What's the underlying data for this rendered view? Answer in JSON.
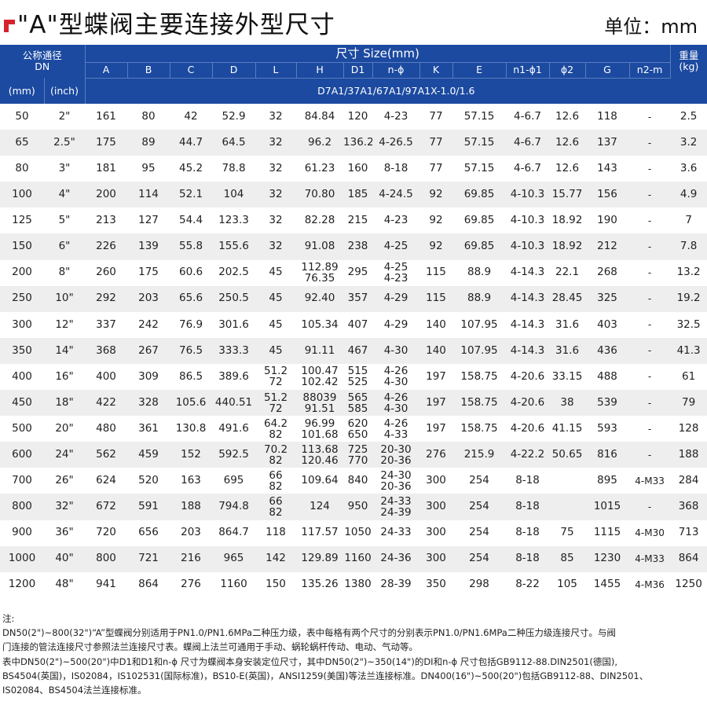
{
  "header": {
    "title": "\"A\"型蝶阀主要连接外型尺寸",
    "unit": "单位：mm"
  },
  "table": {
    "headers": {
      "nominal": "公称通径",
      "dn": "DN",
      "size": "尺寸 Size(mm)",
      "weight_cn": "重量",
      "weight_unit": "(kg)",
      "mm": "(mm)",
      "inch": "(inch)",
      "model": "D7A1/37A1/67A1/97A1X-1.0/1.6",
      "cols": [
        "A",
        "B",
        "C",
        "D",
        "L",
        "H",
        "D1",
        "n-ϕ",
        "K",
        "E",
        "n1-ϕ1",
        "ϕ2",
        "G",
        "n2-m"
      ]
    },
    "rows": [
      [
        "50",
        "2\"",
        "161",
        "80",
        "42",
        "52.9",
        "32",
        "84.84",
        "120",
        "4-23",
        "77",
        "57.15",
        "4-6.7",
        "12.6",
        "118",
        "-",
        "2.5"
      ],
      [
        "65",
        "2.5\"",
        "175",
        "89",
        "44.7",
        "64.5",
        "32",
        "96.2",
        "136.2",
        "4-26.5",
        "77",
        "57.15",
        "4-6.7",
        "12.6",
        "137",
        "-",
        "3.2"
      ],
      [
        "80",
        "3\"",
        "181",
        "95",
        "45.2",
        "78.8",
        "32",
        "61.23",
        "160",
        "8-18",
        "77",
        "57.15",
        "4-6.7",
        "12.6",
        "143",
        "-",
        "3.6"
      ],
      [
        "100",
        "4\"",
        "200",
        "114",
        "52.1",
        "104",
        "32",
        "70.80",
        "185",
        "4-24.5",
        "92",
        "69.85",
        "4-10.3",
        "15.77",
        "156",
        "-",
        "4.9"
      ],
      [
        "125",
        "5\"",
        "213",
        "127",
        "54.4",
        "123.3",
        "32",
        "82.28",
        "215",
        "4-23",
        "92",
        "69.85",
        "4-10.3",
        "18.92",
        "190",
        "-",
        "7"
      ],
      [
        "150",
        "6\"",
        "226",
        "139",
        "55.8",
        "155.6",
        "32",
        "91.08",
        "238",
        "4-25",
        "92",
        "69.85",
        "4-10.3",
        "18.92",
        "212",
        "-",
        "7.8"
      ],
      [
        "200",
        "8\"",
        "260",
        "175",
        "60.6",
        "202.5",
        "45",
        "112.89\n76.35",
        "295",
        "4-25\n4-23",
        "115",
        "88.9",
        "4-14.3",
        "22.1",
        "268",
        "-",
        "13.2"
      ],
      [
        "250",
        "10\"",
        "292",
        "203",
        "65.6",
        "250.5",
        "45",
        "92.40",
        "357",
        "4-29",
        "115",
        "88.9",
        "4-14.3",
        "28.45",
        "325",
        "-",
        "19.2"
      ],
      [
        "300",
        "12\"",
        "337",
        "242",
        "76.9",
        "301.6",
        "45",
        "105.34",
        "407",
        "4-29",
        "140",
        "107.95",
        "4-14.3",
        "31.6",
        "403",
        "-",
        "32.5"
      ],
      [
        "350",
        "14\"",
        "368",
        "267",
        "76.5",
        "333.3",
        "45",
        "91.11",
        "467",
        "4-30",
        "140",
        "107.95",
        "4-14.3",
        "31.6",
        "436",
        "-",
        "41.3"
      ],
      [
        "400",
        "16\"",
        "400",
        "309",
        "86.5",
        "389.6",
        "51.2\n72",
        "100.47\n102.42",
        "515\n525",
        "4-26\n4-30",
        "197",
        "158.75",
        "4-20.6",
        "33.15",
        "488",
        "-",
        "61"
      ],
      [
        "450",
        "18\"",
        "422",
        "328",
        "105.6",
        "440.51",
        "51.2\n72",
        "88039\n91.51",
        "565\n585",
        "4-26\n4-30",
        "197",
        "158.75",
        "4-20.6",
        "38",
        "539",
        "-",
        "79"
      ],
      [
        "500",
        "20\"",
        "480",
        "361",
        "130.8",
        "491.6",
        "64.2\n82",
        "96.99\n101.68",
        "620\n650",
        "4-26\n4-33",
        "197",
        "158.75",
        "4-20.6",
        "41.15",
        "593",
        "-",
        "128"
      ],
      [
        "600",
        "24\"",
        "562",
        "459",
        "152",
        "592.5",
        "70.2\n82",
        "113.68\n120.46",
        "725\n770",
        "20-30\n20-36",
        "276",
        "215.9",
        "4-22.2",
        "50.65",
        "816",
        "-",
        "188"
      ],
      [
        "700",
        "26\"",
        "624",
        "520",
        "163",
        "695",
        "66\n82",
        "109.64",
        "840",
        "24-30\n20-36",
        "300",
        "254",
        "8-18",
        "",
        "895",
        "4-M33",
        "284"
      ],
      [
        "800",
        "32\"",
        "672",
        "591",
        "188",
        "794.8",
        "66\n82",
        "124",
        "950",
        "24-33\n24-39",
        "300",
        "254",
        "8-18",
        "",
        "1015",
        "-",
        "368"
      ],
      [
        "900",
        "36\"",
        "720",
        "656",
        "203",
        "864.7",
        "118",
        "117.57",
        "1050",
        "24-33",
        "300",
        "254",
        "8-18",
        "75",
        "1115",
        "4-M30",
        "713"
      ],
      [
        "1000",
        "40\"",
        "800",
        "721",
        "216",
        "965",
        "142",
        "129.89",
        "1160",
        "24-36",
        "300",
        "254",
        "8-18",
        "85",
        "1230",
        "4-M33",
        "864"
      ],
      [
        "1200",
        "48\"",
        "941",
        "864",
        "276",
        "1160",
        "150",
        "135.26",
        "1380",
        "28-39",
        "350",
        "298",
        "8-22",
        "105",
        "1455",
        "4-M36",
        "1250"
      ]
    ]
  },
  "notes": [
    "注:",
    "    DN50(2\")~800(32\")“A”型蝶阀分别适用于PN1.0/PN1.6MPa二种压力级，表中每格有两个尺寸的分别表示PN1.0/PN1.6MPa二种压力级连接尺寸。与阀",
    "门连接的管法连接尺寸参照法兰连接尺寸表。蝶阀上法兰可通用于手动、蜗轮蜗杆传动、电动、气动等。",
    "    表中DN50(2\")~500(20\")中D1和D1和n-ϕ 尺寸为蝶阀本身安装定位尺寸，其中DN50(2\")~350(14\")的DI和n-ϕ 尺寸包括GB9112-88.DIN2501(德国),",
    "BS4504(英国)，IS02084，IS102531(国际标准)，BS10-E(英国)，ANSI1259(美国)等法兰连接标准。DN400(16\")~500(20\")包括GB9112-88、DIN2501、",
    "IS02084、BS4504法兰连接标准。"
  ],
  "colors": {
    "header_bg": "#1c4aa0",
    "accent": "#d6242c",
    "row_alt": "#eeeeee"
  }
}
